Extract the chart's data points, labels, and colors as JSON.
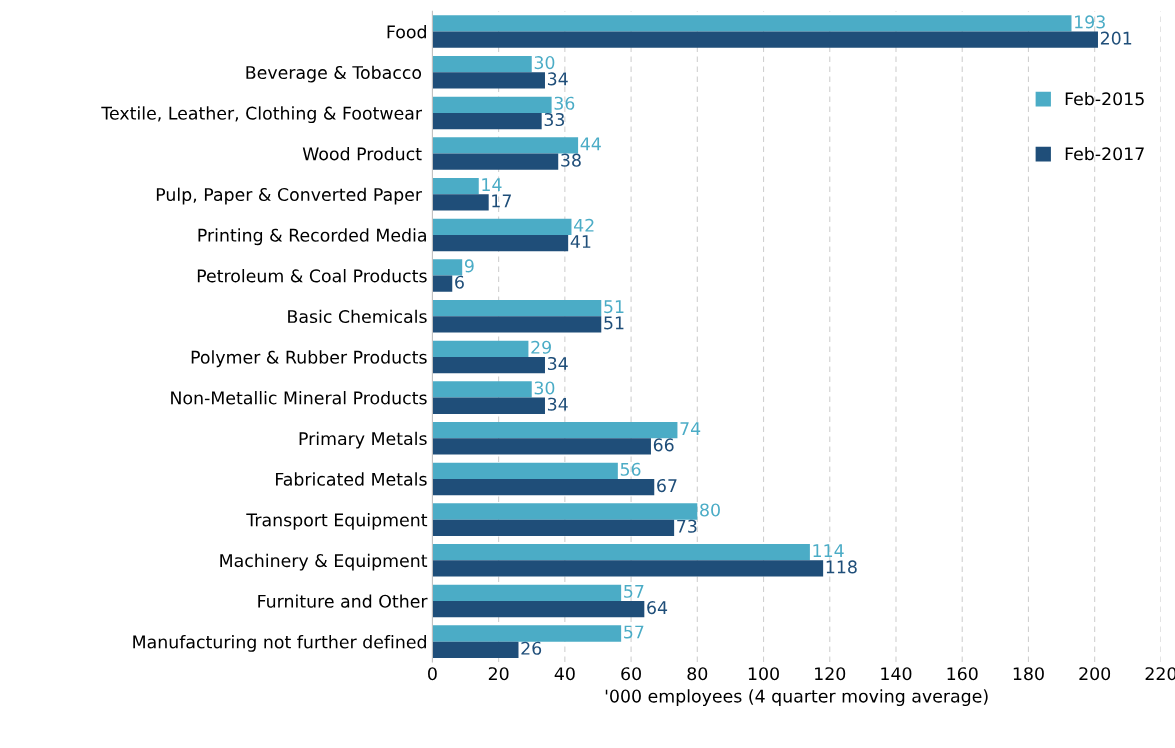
{
  "chart_data": {
    "type": "bar",
    "orientation": "horizontal",
    "xlabel": "'000 employees (4 quarter moving average)",
    "categories": [
      "Food",
      "Beverage & Tobacco ",
      "Textile, Leather, Clothing & Footwear ",
      "Wood Product ",
      "Pulp, Paper & Converted Paper ",
      "Printing & Recorded Media",
      "Petroleum & Coal Products",
      "Basic Chemicals",
      "Polymer & Rubber Products",
      "Non-Metallic Mineral Products",
      "Primary Metals",
      "Fabricated Metals",
      "Transport Equipment",
      "Machinery & Equipment",
      "Furniture and Other",
      "Manufacturing not further defined"
    ],
    "series": [
      {
        "name": "Feb-2015",
        "color": "#4bacc6",
        "values": [
          193,
          30,
          36,
          44,
          14,
          42,
          9,
          51,
          29,
          30,
          74,
          56,
          80,
          114,
          57,
          57
        ]
      },
      {
        "name": "Feb-2017",
        "color": "#1f4e79",
        "values": [
          201,
          34,
          33,
          38,
          17,
          41,
          6,
          51,
          34,
          34,
          66,
          67,
          73,
          118,
          64,
          26
        ]
      }
    ],
    "xlim": [
      0,
      220
    ],
    "xticks": [
      0,
      20,
      40,
      60,
      80,
      100,
      120,
      140,
      160,
      180,
      200,
      220
    ],
    "grid": "x",
    "legend": "top right",
    "data_labels": true
  }
}
